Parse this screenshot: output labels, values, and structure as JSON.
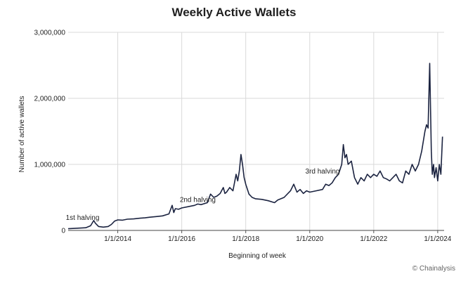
{
  "chart_data": {
    "type": "line",
    "title": "Weekly Active Wallets",
    "xlabel": "Beginning of week",
    "ylabel": "Number of active wallets",
    "xlim": [
      2012.45,
      2024.2
    ],
    "ylim": [
      0,
      3000000
    ],
    "y_ticks": [
      {
        "value": 0,
        "label": "0"
      },
      {
        "value": 1000000,
        "label": "1,000,000"
      },
      {
        "value": 2000000,
        "label": "2,000,000"
      },
      {
        "value": 3000000,
        "label": "3,000,000"
      }
    ],
    "x_ticks": [
      {
        "value": 2014,
        "label": "1/1/2014"
      },
      {
        "value": 2016,
        "label": "1/1/2016"
      },
      {
        "value": 2018,
        "label": "1/1/2018"
      },
      {
        "value": 2020,
        "label": "1/1/2020"
      },
      {
        "value": 2022,
        "label": "1/1/2022"
      },
      {
        "value": 2024,
        "label": "1/1/2024"
      }
    ],
    "annotations": [
      {
        "label": "1st halving",
        "x": 2012.9,
        "y": 160000
      },
      {
        "label": "2nd halving",
        "x": 2016.5,
        "y": 430000
      },
      {
        "label": "3rd halving",
        "x": 2020.4,
        "y": 860000
      }
    ],
    "series": [
      {
        "name": "Weekly active wallets",
        "x": [
          2012.45,
          2012.6,
          2012.8,
          2013.0,
          2013.15,
          2013.25,
          2013.3,
          2013.4,
          2013.55,
          2013.7,
          2013.8,
          2013.9,
          2014.0,
          2014.15,
          2014.3,
          2014.5,
          2014.7,
          2014.85,
          2015.0,
          2015.2,
          2015.4,
          2015.6,
          2015.7,
          2015.75,
          2015.8,
          2015.9,
          2016.0,
          2016.2,
          2016.4,
          2016.5,
          2016.6,
          2016.8,
          2016.9,
          2017.0,
          2017.1,
          2017.2,
          2017.3,
          2017.35,
          2017.4,
          2017.5,
          2017.6,
          2017.7,
          2017.75,
          2017.8,
          2017.85,
          2017.9,
          2017.95,
          2018.0,
          2018.1,
          2018.2,
          2018.3,
          2018.5,
          2018.7,
          2018.9,
          2019.0,
          2019.2,
          2019.4,
          2019.5,
          2019.6,
          2019.7,
          2019.8,
          2019.9,
          2020.0,
          2020.2,
          2020.4,
          2020.5,
          2020.6,
          2020.7,
          2020.8,
          2020.9,
          2021.0,
          2021.05,
          2021.1,
          2021.15,
          2021.2,
          2021.3,
          2021.4,
          2021.5,
          2021.6,
          2021.7,
          2021.8,
          2021.9,
          2022.0,
          2022.1,
          2022.2,
          2022.3,
          2022.4,
          2022.5,
          2022.6,
          2022.7,
          2022.8,
          2022.9,
          2023.0,
          2023.1,
          2023.2,
          2023.3,
          2023.4,
          2023.5,
          2023.6,
          2023.65,
          2023.7,
          2023.75,
          2023.8,
          2023.83,
          2023.87,
          2023.9,
          2023.95,
          2024.0,
          2024.05,
          2024.1,
          2024.15
        ],
        "values": [
          25000,
          30000,
          35000,
          40000,
          70000,
          150000,
          110000,
          60000,
          50000,
          60000,
          90000,
          140000,
          160000,
          155000,
          170000,
          175000,
          185000,
          190000,
          200000,
          210000,
          220000,
          250000,
          380000,
          270000,
          330000,
          320000,
          340000,
          360000,
          380000,
          400000,
          390000,
          420000,
          550000,
          500000,
          520000,
          560000,
          650000,
          560000,
          580000,
          650000,
          600000,
          850000,
          750000,
          900000,
          1150000,
          1000000,
          800000,
          700000,
          550000,
          500000,
          480000,
          470000,
          450000,
          420000,
          460000,
          500000,
          600000,
          700000,
          580000,
          620000,
          560000,
          600000,
          580000,
          600000,
          620000,
          700000,
          680000,
          720000,
          800000,
          850000,
          1000000,
          1300000,
          1100000,
          1150000,
          1000000,
          1050000,
          800000,
          700000,
          800000,
          750000,
          850000,
          800000,
          850000,
          820000,
          900000,
          800000,
          780000,
          750000,
          800000,
          850000,
          750000,
          720000,
          900000,
          850000,
          1000000,
          900000,
          1000000,
          1200000,
          1500000,
          1600000,
          1550000,
          2530000,
          1200000,
          850000,
          1000000,
          800000,
          950000,
          750000,
          1000000,
          850000,
          1420000
        ]
      }
    ]
  },
  "credit": "© Chainalysis"
}
